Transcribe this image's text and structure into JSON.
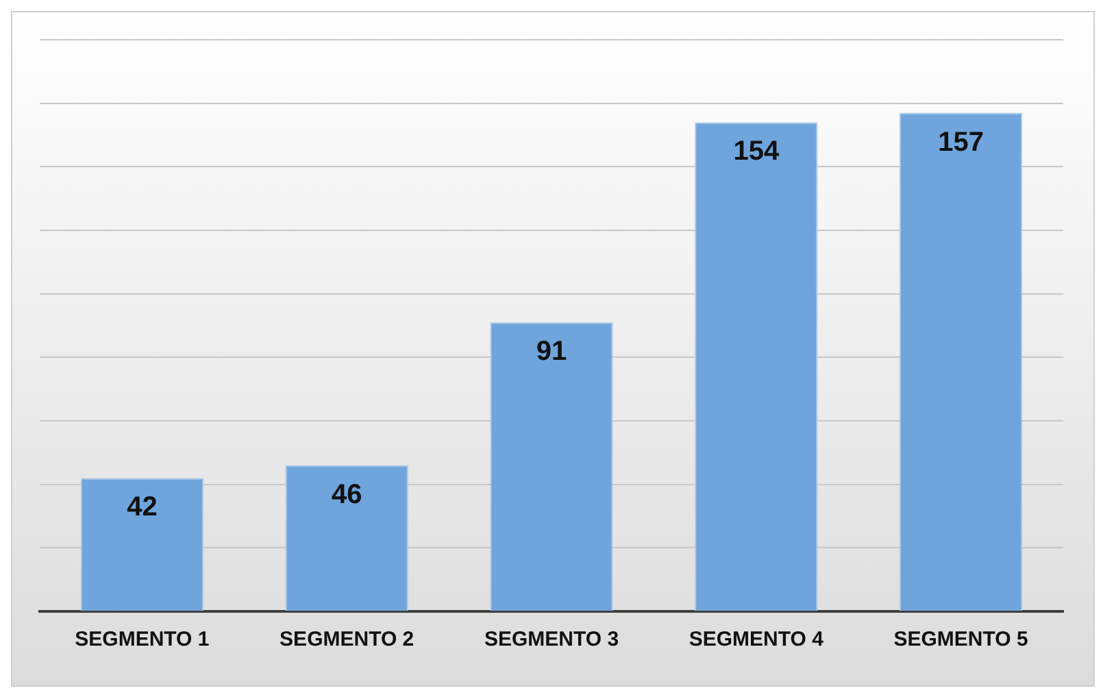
{
  "chart_data": {
    "type": "bar",
    "categories": [
      "SEGMENTO 1",
      "SEGMENTO 2",
      "SEGMENTO 3",
      "SEGMENTO 4",
      "SEGMENTO 5"
    ],
    "values": [
      42,
      46,
      91,
      154,
      157
    ],
    "color": "#6fa5dc",
    "data_labels": true,
    "grid": "y",
    "legend": false,
    "tick_labels": "x",
    "ylim": [
      0,
      180
    ],
    "yticks": [
      {
        "value": 0,
        "label": null
      },
      {
        "value": 20,
        "label": null
      },
      {
        "value": 40,
        "label": null
      },
      {
        "value": 60,
        "label": null
      },
      {
        "value": 80,
        "label": null
      },
      {
        "value": 100,
        "label": null
      },
      {
        "value": 120,
        "label": null
      },
      {
        "value": 140,
        "label": null
      },
      {
        "value": 160,
        "label": null
      },
      {
        "value": 180,
        "label": null
      }
    ]
  }
}
